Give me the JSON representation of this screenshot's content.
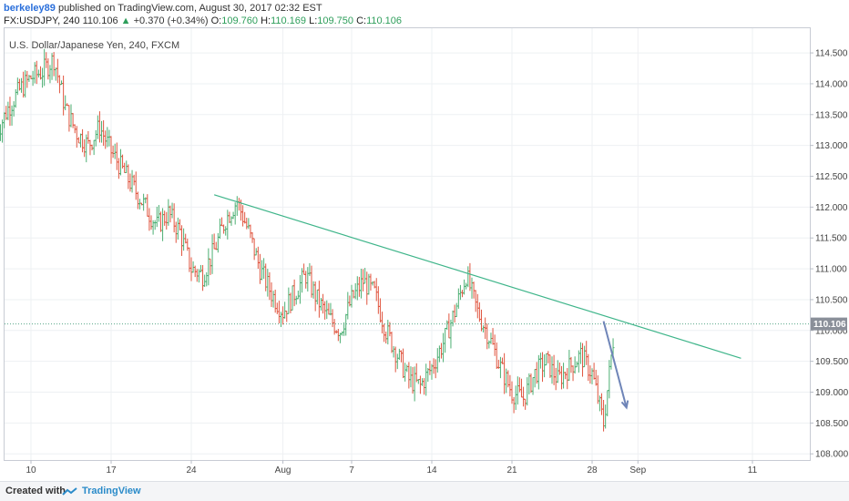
{
  "header": {
    "author": "berkeley89",
    "published": " published on TradingView.com, August 30, 2017 02:32 EST",
    "symbol": "FX:USDJPY, 240",
    "last": "110.106",
    "up_arrow": "▲",
    "change": "+0.370 (+0.34%)",
    "o_label": "O:",
    "o_val": "109.760",
    "h_label": "H:",
    "h_val": "110.169",
    "l_label": "L:",
    "l_val": "109.750",
    "c_label": "C:",
    "c_val": "110.106"
  },
  "legend": "U.S. Dollar/Japanese Yen, 240, FXCM",
  "footer": {
    "created_with": "Created with",
    "brand": "TradingView"
  },
  "colors": {
    "up": "#4caf73",
    "down": "#e0553f",
    "trendline": "#3fb58a",
    "arrow": "#6f85b8",
    "price_tag": "#8a8f99"
  },
  "chart_data": {
    "type": "line",
    "title": "U.S. Dollar/Japanese Yen, 240, FXCM",
    "x_ticks": [
      "10",
      "17",
      "24",
      "Aug",
      "7",
      "14",
      "21",
      "28",
      "Sep",
      "11"
    ],
    "y_ticks": [
      "114.500",
      "114.000",
      "113.500",
      "113.000",
      "112.500",
      "112.000",
      "111.500",
      "111.000",
      "110.500",
      "110.000",
      "109.500",
      "109.000",
      "108.500",
      "108.000"
    ],
    "ylim": [
      107.9,
      114.9
    ],
    "current_price": 110.106,
    "current_price_label": "110.106",
    "series": [
      {
        "name": "USDJPY",
        "x": [
          "Jul 7",
          "Jul 8",
          "Jul 9",
          "Jul 10",
          "Jul 11",
          "Jul 12",
          "Jul 13",
          "Jul 14",
          "Jul 15",
          "Jul 16",
          "Jul 17",
          "Jul 18",
          "Jul 19",
          "Jul 20",
          "Jul 21",
          "Jul 22",
          "Jul 23",
          "Jul 24",
          "Jul 25",
          "Jul 26",
          "Jul 27",
          "Jul 28",
          "Jul 29",
          "Jul 30",
          "Jul 31",
          "Aug 1",
          "Aug 2",
          "Aug 3",
          "Aug 4",
          "Aug 5",
          "Aug 6",
          "Aug 7",
          "Aug 8",
          "Aug 9",
          "Aug 10",
          "Aug 11",
          "Aug 12",
          "Aug 13",
          "Aug 14",
          "Aug 15",
          "Aug 16",
          "Aug 17",
          "Aug 18",
          "Aug 19",
          "Aug 20",
          "Aug 21",
          "Aug 22",
          "Aug 23",
          "Aug 24",
          "Aug 25",
          "Aug 26",
          "Aug 27",
          "Aug 28",
          "Aug 29",
          "Aug 30"
        ],
        "values": [
          113.2,
          113.6,
          113.9,
          114.1,
          114.2,
          114.4,
          113.6,
          113.2,
          113.0,
          113.3,
          112.9,
          112.6,
          112.3,
          112.0,
          111.7,
          111.9,
          111.6,
          111.0,
          110.9,
          111.3,
          111.8,
          112.1,
          111.6,
          111.0,
          110.6,
          110.3,
          110.6,
          110.9,
          110.5,
          110.2,
          110.0,
          110.5,
          110.8,
          110.6,
          110.0,
          109.6,
          109.2,
          109.1,
          109.4,
          109.8,
          110.3,
          110.9,
          110.3,
          109.9,
          109.4,
          109.0,
          108.9,
          109.3,
          109.5,
          109.2,
          109.4,
          109.6,
          109.3,
          108.5,
          110.1
        ]
      }
    ],
    "trendline": {
      "start": {
        "x": "Jul 26",
        "y": 112.2
      },
      "end": {
        "x": "Sep 10",
        "y": 109.55
      }
    },
    "arrow": {
      "start": {
        "x": "Aug 29",
        "y": 110.15
      },
      "end": {
        "x": "Aug 31",
        "y": 108.75
      }
    }
  }
}
